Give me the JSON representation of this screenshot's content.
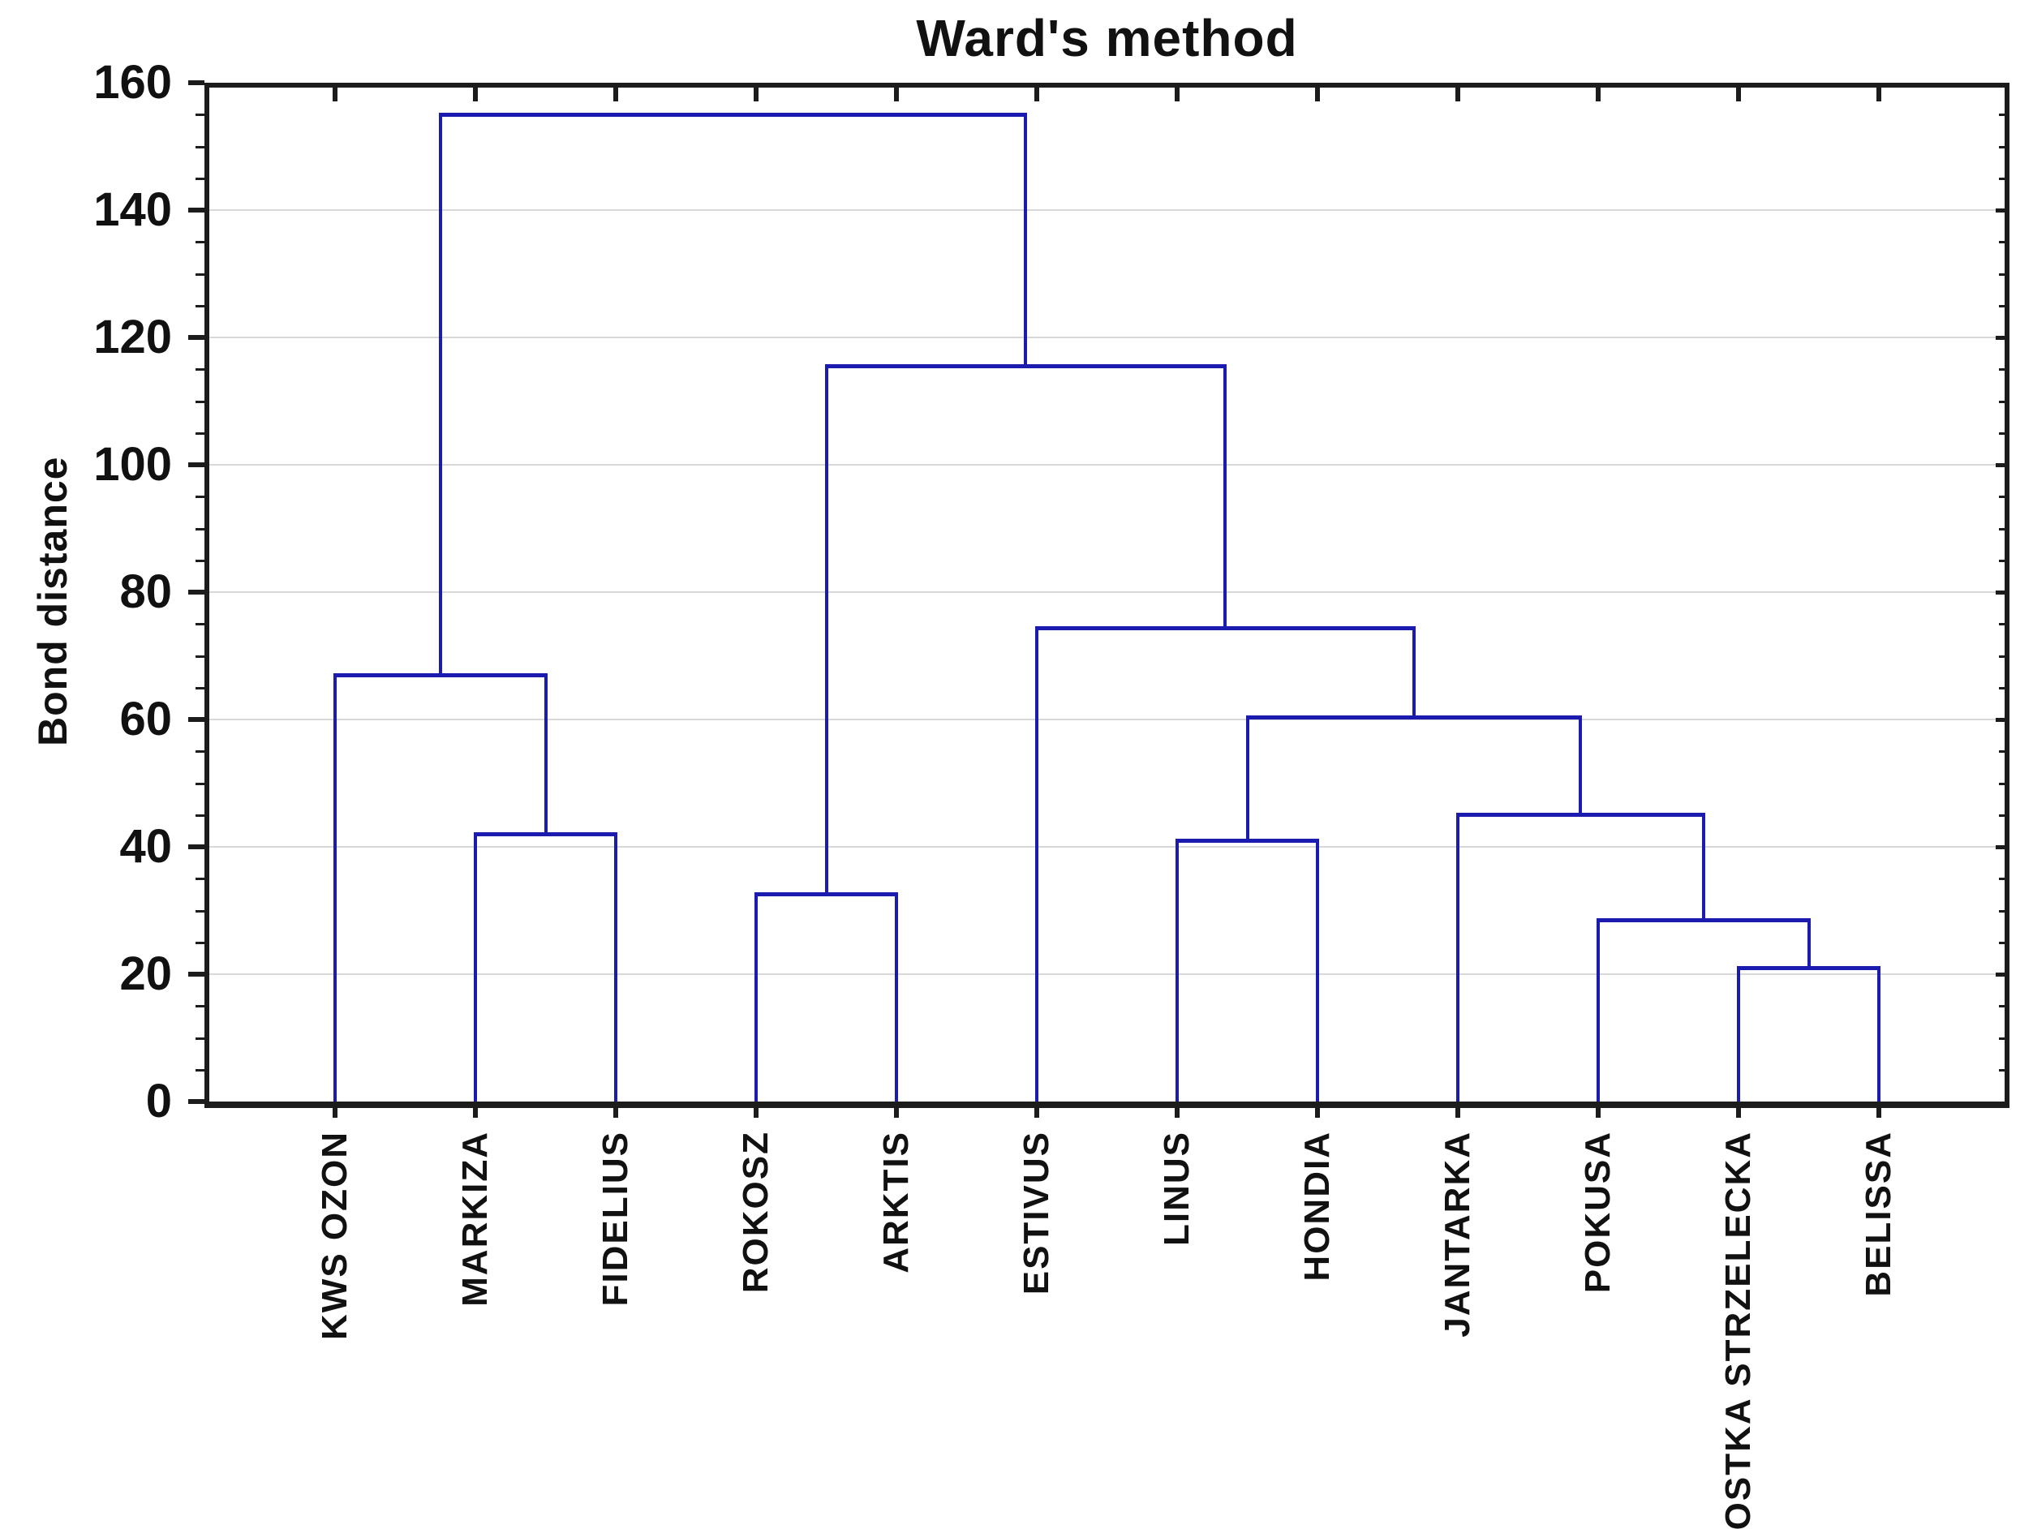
{
  "figure": {
    "title": "Ward's method",
    "ylabel": "Bond distance"
  },
  "chart_data": {
    "type": "dendrogram",
    "title": "Ward's method",
    "xlabel": "",
    "ylabel": "Bond distance",
    "ylim": [
      0,
      160
    ],
    "yticks": [
      0,
      20,
      40,
      60,
      80,
      100,
      120,
      140,
      160
    ],
    "ytick_minor_step": 5,
    "grid": "horizontal-major",
    "legend": "none",
    "line_color": "#1b1baf",
    "grid_color": "#d8d8d8",
    "axis_color": "#1c1c1c",
    "leaves": [
      "KWS OZON",
      "MARKIZA",
      "FIDELIUS",
      "ROKOSZ",
      "ARKTIS",
      "ESTIVUS",
      "LINUS",
      "HONDIA",
      "JANTARKA",
      "POKUSA",
      "OSTKA STRZELECKA",
      "BELISSA"
    ],
    "merges": [
      {
        "id": "m1",
        "left": "MARKIZA",
        "right": "FIDELIUS",
        "height": 42
      },
      {
        "id": "m2",
        "left": "KWS OZON",
        "right": "m1",
        "height": 67
      },
      {
        "id": "m3",
        "left": "ROKOSZ",
        "right": "ARKTIS",
        "height": 32.5
      },
      {
        "id": "m4",
        "left": "LINUS",
        "right": "HONDIA",
        "height": 41
      },
      {
        "id": "m5",
        "left": "OSTKA STRZELECKA",
        "right": "BELISSA",
        "height": 21
      },
      {
        "id": "m6",
        "left": "POKUSA",
        "right": "m5",
        "height": 28.5
      },
      {
        "id": "m7",
        "left": "JANTARKA",
        "right": "m6",
        "height": 45
      },
      {
        "id": "m8",
        "left": "m4",
        "right": "m7",
        "height": 60.3
      },
      {
        "id": "m9",
        "left": "ESTIVUS",
        "right": "m8",
        "height": 74.3
      },
      {
        "id": "m10",
        "left": "m3",
        "right": "m9",
        "height": 115.5
      },
      {
        "id": "m11",
        "left": "m2",
        "right": "m10",
        "height": 155
      }
    ]
  }
}
